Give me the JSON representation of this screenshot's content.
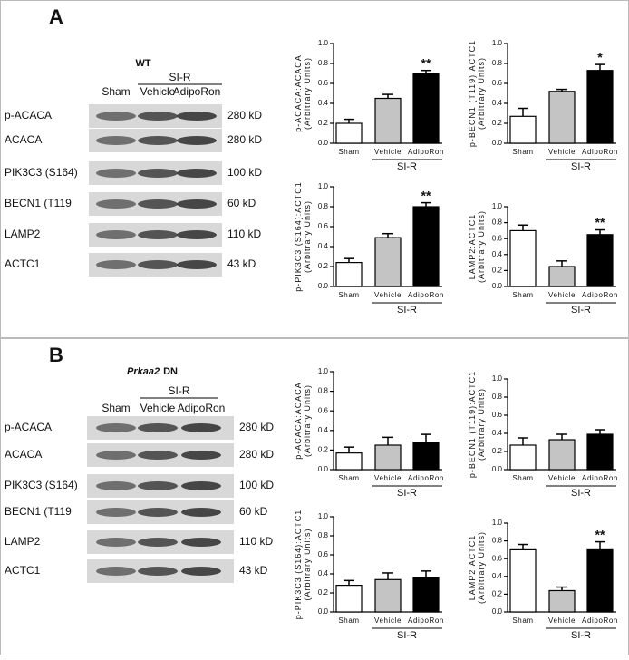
{
  "panels": [
    {
      "label": "A",
      "genotype": {
        "gene": "WT"
      },
      "group": "SI-R",
      "lanes": [
        "Sham",
        "Vehicle",
        "AdipoRon"
      ],
      "rows": [
        {
          "protein": "p-ACACA",
          "size": "280 kD"
        },
        {
          "protein": "ACACA",
          "size": "280 kD"
        },
        {
          "protein": "PIK3C3 (S164)",
          "size": "100 kD"
        },
        {
          "protein": "BECN1 (T119",
          "size": "60 kD"
        },
        {
          "protein": "LAMP2",
          "size": "110 kD"
        },
        {
          "protein": "ACTC1",
          "size": "43 kD"
        }
      ]
    },
    {
      "label": "B",
      "genotype": {
        "gene": "Prkaa2",
        "construct": "DN"
      },
      "group": "SI-R",
      "lanes": [
        "Sham",
        "Vehicle",
        "AdipoRon"
      ],
      "rows": [
        {
          "protein": "p-ACACA",
          "size": "280 kD"
        },
        {
          "protein": "ACACA",
          "size": "280 kD"
        },
        {
          "protein": "PIK3C3 (S164)",
          "size": "100 kD"
        },
        {
          "protein": "BECN1 (T119",
          "size": "60 kD"
        },
        {
          "protein": "LAMP2",
          "size": "110 kD"
        },
        {
          "protein": "ACTC1",
          "size": "43  kD"
        }
      ]
    }
  ],
  "chart_data": [
    {
      "type": "bar",
      "ylabel": [
        "p-ACACA:ACACA",
        "(Arbitrary Units)"
      ],
      "categories": [
        "Sham",
        "Vehicle",
        "AdipoRon"
      ],
      "group": "SI-R",
      "values": [
        0.2,
        0.45,
        0.7
      ],
      "errors": [
        0.04,
        0.04,
        0.03
      ],
      "value_annotations": [
        null,
        null,
        "**"
      ],
      "colors": [
        "#ffffff",
        "#c4c4c4",
        "#000000"
      ],
      "ylim": [
        0,
        1
      ],
      "yticks": [
        {
          "value": 0,
          "label": "0.0"
        },
        0.2,
        0.4,
        0.6,
        0.8,
        {
          "value": 1,
          "label": "1.0"
        }
      ]
    },
    {
      "type": "bar",
      "ylabel": [
        "p-BECN1 (T119):ACTC1",
        "(Arbitrary Units)"
      ],
      "categories": [
        "Sham",
        "Vehicle",
        "AdipoRon"
      ],
      "group": "SI-R",
      "values": [
        0.27,
        0.52,
        0.73
      ],
      "errors": [
        0.08,
        0.02,
        0.06
      ],
      "value_annotations": [
        null,
        null,
        "*"
      ],
      "colors": [
        "#ffffff",
        "#c4c4c4",
        "#000000"
      ],
      "ylim": [
        0,
        1
      ],
      "yticks": [
        {
          "value": 0,
          "label": "0.0"
        },
        0.2,
        0.4,
        0.6,
        0.8,
        {
          "value": 1,
          "label": "1.0"
        }
      ]
    },
    {
      "type": "bar",
      "ylabel": [
        "p-PIK3C3 (S164):ACTC1",
        "(Arbitrary Units)"
      ],
      "categories": [
        "Sham",
        "Vehicle",
        "AdipoRon"
      ],
      "group": "SI-R",
      "values": [
        0.24,
        0.49,
        0.8
      ],
      "errors": [
        0.04,
        0.04,
        0.04
      ],
      "value_annotations": [
        null,
        null,
        "**"
      ],
      "colors": [
        "#ffffff",
        "#c4c4c4",
        "#000000"
      ],
      "ylim": [
        0,
        1
      ],
      "yticks": [
        {
          "value": 0,
          "label": "0.0"
        },
        0.2,
        0.4,
        0.6,
        0.8,
        {
          "value": 1,
          "label": "1.0"
        }
      ]
    },
    {
      "type": "bar",
      "ylabel": [
        "LAMP2:ACTC1",
        "(Arbitrary Units)"
      ],
      "categories": [
        "Sham",
        "Vehicle",
        "AdipoRon"
      ],
      "group": "SI-R",
      "values": [
        0.7,
        0.25,
        0.65
      ],
      "errors": [
        0.07,
        0.07,
        0.06
      ],
      "value_annotations": [
        null,
        null,
        "**"
      ],
      "colors": [
        "#ffffff",
        "#c4c4c4",
        "#000000"
      ],
      "ylim": [
        0,
        1
      ],
      "yticks": [
        {
          "value": 0,
          "label": "0.0"
        },
        0.2,
        0.4,
        0.6,
        0.8,
        {
          "value": 1,
          "label": "1.0"
        }
      ]
    },
    {
      "type": "bar",
      "ylabel": [
        "p-ACACA:ACACA",
        "(Arbitrary Units)"
      ],
      "categories": [
        "Sham",
        "Vehicle",
        "AdipoRon"
      ],
      "group": "SI-R",
      "values": [
        0.17,
        0.25,
        0.28
      ],
      "errors": [
        0.06,
        0.08,
        0.08
      ],
      "value_annotations": [
        null,
        null,
        null
      ],
      "colors": [
        "#ffffff",
        "#c4c4c4",
        "#000000"
      ],
      "ylim": [
        0,
        1
      ],
      "yticks": [
        {
          "value": 0,
          "label": "0.0"
        },
        0.2,
        0.4,
        0.6,
        0.8,
        {
          "value": 1,
          "label": "1.0"
        }
      ]
    },
    {
      "type": "bar",
      "ylabel": [
        "p-BECN1 (T119):ACTC1",
        "(Arbitrary Units)"
      ],
      "categories": [
        "Sham",
        "Vehicle",
        "AdipoRon"
      ],
      "group": "SI-R",
      "values": [
        0.27,
        0.33,
        0.39
      ],
      "errors": [
        0.08,
        0.06,
        0.05
      ],
      "value_annotations": [
        null,
        null,
        null
      ],
      "colors": [
        "#ffffff",
        "#c4c4c4",
        "#000000"
      ],
      "ylim": [
        0,
        1
      ],
      "yticks": [
        {
          "value": 0,
          "label": "0.0"
        },
        0.2,
        0.4,
        0.6,
        0.8,
        {
          "value": 1,
          "label": "1.0"
        }
      ]
    },
    {
      "type": "bar",
      "ylabel": [
        "p-PIK3C3 (S164):ACTC1",
        "(Arbitrary Units)"
      ],
      "categories": [
        "Sham",
        "Vehicle",
        "AdipoRon"
      ],
      "group": "SI-R",
      "values": [
        0.28,
        0.34,
        0.36
      ],
      "errors": [
        0.05,
        0.07,
        0.07
      ],
      "value_annotations": [
        null,
        null,
        null
      ],
      "colors": [
        "#ffffff",
        "#c4c4c4",
        "#000000"
      ],
      "ylim": [
        0,
        1
      ],
      "yticks": [
        {
          "value": 0,
          "label": "0.0"
        },
        0.2,
        0.4,
        0.6,
        0.8,
        {
          "value": 1,
          "label": "1.0"
        }
      ]
    },
    {
      "type": "bar",
      "ylabel": [
        "LAMP2:ACTC1",
        "(Arbitrary Units)"
      ],
      "categories": [
        "Sham",
        "Vehicle",
        "AdipoRon"
      ],
      "group": "SI-R",
      "values": [
        0.7,
        0.24,
        0.7
      ],
      "errors": [
        0.06,
        0.04,
        0.09
      ],
      "value_annotations": [
        null,
        null,
        "**"
      ],
      "colors": [
        "#ffffff",
        "#c4c4c4",
        "#000000"
      ],
      "ylim": [
        0,
        1
      ],
      "yticks": [
        {
          "value": 0,
          "label": "0.0"
        },
        0.2,
        0.4,
        0.6,
        0.8,
        {
          "value": 1,
          "label": "1.0"
        }
      ]
    }
  ]
}
